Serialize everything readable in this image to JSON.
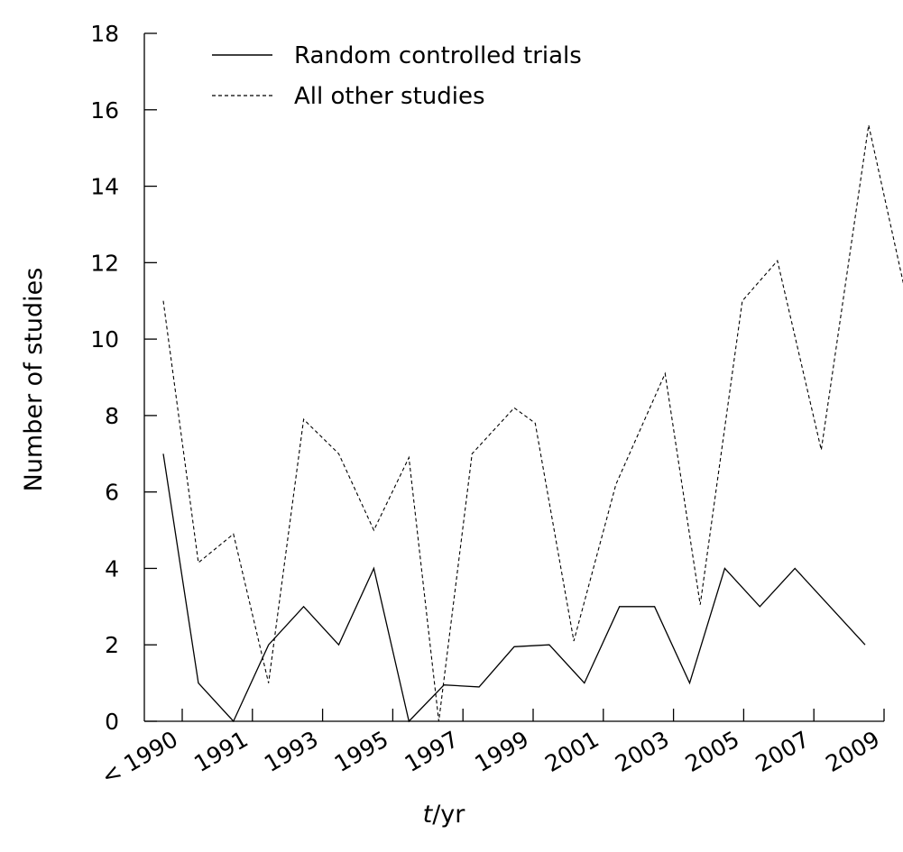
{
  "chart_data": {
    "type": "line",
    "xlabel_italic": "t",
    "xlabel_rest": "/yr",
    "ylabel": "Number of studies",
    "ylim": [
      0,
      18
    ],
    "yticks": [
      0,
      2,
      4,
      6,
      8,
      10,
      12,
      14,
      16,
      18
    ],
    "xtick_labels": [
      "< 1990",
      "1991",
      "1993",
      "1995",
      "1997",
      "1999",
      "2001",
      "2003",
      "2005",
      "2007",
      "2009"
    ],
    "legend_position": "top-left",
    "grid": false,
    "series": [
      {
        "name": "Random controlled trials",
        "style": "solid",
        "color": "#000000",
        "x": [
          0,
          1,
          2,
          3,
          4,
          5,
          6,
          7,
          8,
          9,
          10,
          11,
          12,
          13,
          14,
          15,
          16,
          17,
          18,
          19,
          20
        ],
        "values": [
          7,
          1,
          0,
          2,
          3,
          2,
          4,
          0,
          0.95,
          0.9,
          1.95,
          2,
          1,
          3,
          3,
          1,
          4,
          3,
          4,
          3,
          2
        ]
      },
      {
        "name": "All other studies",
        "style": "dashed",
        "color": "#000000",
        "x": [
          0,
          1,
          2,
          3,
          4,
          5,
          6,
          7,
          7.85,
          8.8,
          10,
          10.6,
          11.7,
          12.9,
          14.3,
          15.3,
          16.5,
          17.5,
          18.75,
          20.1,
          21.2
        ],
        "values": [
          11,
          4.15,
          4.9,
          1,
          7.9,
          7,
          5,
          6.9,
          0,
          7,
          8.2,
          7.8,
          2.1,
          6.2,
          9.1,
          3.05,
          11,
          12.05,
          7.1,
          15.6,
          11
        ]
      }
    ]
  }
}
